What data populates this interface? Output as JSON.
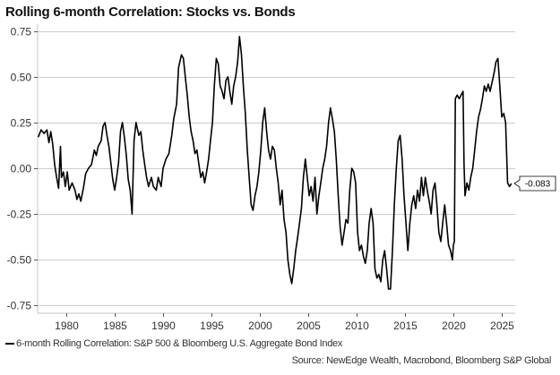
{
  "chart_data": {
    "type": "line",
    "title": "Rolling 6-month Correlation: Stocks vs. Bonds",
    "xlabel": "",
    "ylabel": "",
    "xlim": [
      1977.0,
      2026.6
    ],
    "ylim": [
      -0.78,
      0.78
    ],
    "yticks": [
      0.75,
      0.5,
      0.25,
      0.0,
      -0.25,
      -0.5,
      -0.75
    ],
    "ytick_labels": [
      "0.75",
      "0.50",
      "0.25",
      "0.00",
      "-0.25",
      "-0.50",
      "-0.75"
    ],
    "xticks": [
      1980,
      1985,
      1990,
      1995,
      2000,
      2005,
      2010,
      2015,
      2020,
      2025
    ],
    "xtick_labels": [
      "1980",
      "1985",
      "1990",
      "1995",
      "2000",
      "2005",
      "2010",
      "2015",
      "2020",
      "2025"
    ],
    "grid": "horizontal",
    "legend_position": "bottom-left",
    "series": [
      {
        "name": "6-month Rolling Correlation: S&P 500 & Bloomberg U.S. Aggregate Bond Index",
        "color": "#000000",
        "points": [
          [
            1977.1,
            0.17
          ],
          [
            1977.4,
            0.21
          ],
          [
            1977.7,
            0.19
          ],
          [
            1978.0,
            0.21
          ],
          [
            1978.2,
            0.14
          ],
          [
            1978.4,
            0.2
          ],
          [
            1978.6,
            0.13
          ],
          [
            1978.8,
            0.02
          ],
          [
            1979.0,
            -0.05
          ],
          [
            1979.2,
            -0.11
          ],
          [
            1979.4,
            0.12
          ],
          [
            1979.5,
            -0.05
          ],
          [
            1979.7,
            -0.02
          ],
          [
            1979.9,
            -0.1
          ],
          [
            1980.1,
            -0.02
          ],
          [
            1980.3,
            -0.12
          ],
          [
            1980.6,
            -0.08
          ],
          [
            1980.9,
            -0.12
          ],
          [
            1981.1,
            -0.17
          ],
          [
            1981.3,
            -0.14
          ],
          [
            1981.5,
            -0.18
          ],
          [
            1981.8,
            -0.1
          ],
          [
            1982.0,
            -0.03
          ],
          [
            1982.3,
            0.0
          ],
          [
            1982.6,
            0.02
          ],
          [
            1982.9,
            0.1
          ],
          [
            1983.1,
            0.07
          ],
          [
            1983.3,
            0.12
          ],
          [
            1983.6,
            0.15
          ],
          [
            1983.8,
            0.23
          ],
          [
            1984.0,
            0.25
          ],
          [
            1984.2,
            0.18
          ],
          [
            1984.4,
            0.12
          ],
          [
            1984.6,
            0.03
          ],
          [
            1984.8,
            -0.06
          ],
          [
            1985.0,
            -0.12
          ],
          [
            1985.2,
            -0.05
          ],
          [
            1985.4,
            0.03
          ],
          [
            1985.6,
            0.2
          ],
          [
            1985.8,
            0.25
          ],
          [
            1986.0,
            0.17
          ],
          [
            1986.2,
            0.07
          ],
          [
            1986.4,
            -0.06
          ],
          [
            1986.6,
            -0.12
          ],
          [
            1986.8,
            -0.25
          ],
          [
            1987.0,
            0.15
          ],
          [
            1987.2,
            0.25
          ],
          [
            1987.5,
            0.18
          ],
          [
            1987.7,
            0.2
          ],
          [
            1987.9,
            0.1
          ],
          [
            1988.1,
            0.02
          ],
          [
            1988.3,
            -0.05
          ],
          [
            1988.5,
            -0.1
          ],
          [
            1988.8,
            -0.05
          ],
          [
            1989.0,
            -0.1
          ],
          [
            1989.3,
            -0.12
          ],
          [
            1989.5,
            -0.05
          ],
          [
            1989.8,
            -0.1
          ],
          [
            1990.0,
            0.0
          ],
          [
            1990.3,
            0.05
          ],
          [
            1990.6,
            0.08
          ],
          [
            1990.9,
            0.18
          ],
          [
            1991.1,
            0.27
          ],
          [
            1991.4,
            0.35
          ],
          [
            1991.6,
            0.55
          ],
          [
            1991.9,
            0.62
          ],
          [
            1992.1,
            0.6
          ],
          [
            1992.3,
            0.5
          ],
          [
            1992.5,
            0.4
          ],
          [
            1992.7,
            0.28
          ],
          [
            1992.9,
            0.2
          ],
          [
            1993.1,
            0.15
          ],
          [
            1993.3,
            0.08
          ],
          [
            1993.5,
            0.1
          ],
          [
            1993.7,
            0.02
          ],
          [
            1993.9,
            -0.05
          ],
          [
            1994.1,
            -0.02
          ],
          [
            1994.3,
            -0.08
          ],
          [
            1994.5,
            -0.02
          ],
          [
            1994.7,
            0.05
          ],
          [
            1994.9,
            0.15
          ],
          [
            1995.1,
            0.25
          ],
          [
            1995.3,
            0.45
          ],
          [
            1995.5,
            0.6
          ],
          [
            1995.7,
            0.57
          ],
          [
            1995.9,
            0.45
          ],
          [
            1996.1,
            0.42
          ],
          [
            1996.3,
            0.38
          ],
          [
            1996.5,
            0.48
          ],
          [
            1996.7,
            0.5
          ],
          [
            1996.9,
            0.42
          ],
          [
            1997.1,
            0.35
          ],
          [
            1997.3,
            0.45
          ],
          [
            1997.5,
            0.5
          ],
          [
            1997.7,
            0.58
          ],
          [
            1997.9,
            0.72
          ],
          [
            1998.1,
            0.62
          ],
          [
            1998.3,
            0.45
          ],
          [
            1998.5,
            0.3
          ],
          [
            1998.7,
            0.1
          ],
          [
            1998.9,
            -0.05
          ],
          [
            1999.1,
            -0.2
          ],
          [
            1999.3,
            -0.23
          ],
          [
            1999.5,
            -0.15
          ],
          [
            1999.7,
            -0.1
          ],
          [
            1999.9,
            -0.02
          ],
          [
            2000.1,
            0.1
          ],
          [
            2000.3,
            0.25
          ],
          [
            2000.5,
            0.33
          ],
          [
            2000.7,
            0.2
          ],
          [
            2000.9,
            0.1
          ],
          [
            2001.1,
            0.05
          ],
          [
            2001.3,
            0.12
          ],
          [
            2001.5,
            0.1
          ],
          [
            2001.7,
            0.0
          ],
          [
            2001.9,
            -0.08
          ],
          [
            2002.1,
            -0.2
          ],
          [
            2002.3,
            -0.12
          ],
          [
            2002.5,
            -0.28
          ],
          [
            2002.7,
            -0.35
          ],
          [
            2002.9,
            -0.5
          ],
          [
            2003.1,
            -0.58
          ],
          [
            2003.3,
            -0.63
          ],
          [
            2003.5,
            -0.55
          ],
          [
            2003.7,
            -0.45
          ],
          [
            2003.9,
            -0.38
          ],
          [
            2004.1,
            -0.3
          ],
          [
            2004.3,
            -0.22
          ],
          [
            2004.5,
            -0.05
          ],
          [
            2004.7,
            0.05
          ],
          [
            2004.9,
            -0.05
          ],
          [
            2005.1,
            -0.15
          ],
          [
            2005.3,
            -0.1
          ],
          [
            2005.5,
            -0.18
          ],
          [
            2005.7,
            -0.05
          ],
          [
            2005.9,
            -0.25
          ],
          [
            2006.1,
            -0.15
          ],
          [
            2006.3,
            -0.08
          ],
          [
            2006.5,
            0.0
          ],
          [
            2006.7,
            0.05
          ],
          [
            2006.9,
            0.12
          ],
          [
            2007.1,
            0.25
          ],
          [
            2007.3,
            0.33
          ],
          [
            2007.5,
            0.27
          ],
          [
            2007.7,
            0.2
          ],
          [
            2007.9,
            0.05
          ],
          [
            2008.1,
            -0.15
          ],
          [
            2008.3,
            -0.32
          ],
          [
            2008.5,
            -0.42
          ],
          [
            2008.7,
            -0.35
          ],
          [
            2008.9,
            -0.28
          ],
          [
            2009.1,
            -0.3
          ],
          [
            2009.3,
            -0.12
          ],
          [
            2009.5,
            0.0
          ],
          [
            2009.7,
            -0.02
          ],
          [
            2009.9,
            -0.08
          ],
          [
            2010.1,
            -0.35
          ],
          [
            2010.3,
            -0.45
          ],
          [
            2010.5,
            -0.42
          ],
          [
            2010.7,
            -0.48
          ],
          [
            2010.9,
            -0.52
          ],
          [
            2011.1,
            -0.45
          ],
          [
            2011.3,
            -0.3
          ],
          [
            2011.5,
            -0.22
          ],
          [
            2011.7,
            -0.3
          ],
          [
            2011.9,
            -0.55
          ],
          [
            2012.1,
            -0.6
          ],
          [
            2012.3,
            -0.58
          ],
          [
            2012.5,
            -0.62
          ],
          [
            2012.7,
            -0.5
          ],
          [
            2012.9,
            -0.45
          ],
          [
            2013.1,
            -0.55
          ],
          [
            2013.3,
            -0.66
          ],
          [
            2013.5,
            -0.66
          ],
          [
            2013.7,
            -0.45
          ],
          [
            2013.9,
            -0.2
          ],
          [
            2014.1,
            0.0
          ],
          [
            2014.3,
            0.15
          ],
          [
            2014.5,
            0.18
          ],
          [
            2014.7,
            0.05
          ],
          [
            2014.9,
            -0.15
          ],
          [
            2015.1,
            -0.3
          ],
          [
            2015.3,
            -0.45
          ],
          [
            2015.5,
            -0.3
          ],
          [
            2015.7,
            -0.2
          ],
          [
            2015.9,
            -0.15
          ],
          [
            2016.1,
            -0.22
          ],
          [
            2016.3,
            -0.12
          ],
          [
            2016.5,
            -0.18
          ],
          [
            2016.7,
            -0.05
          ],
          [
            2016.9,
            -0.15
          ],
          [
            2017.1,
            -0.05
          ],
          [
            2017.3,
            -0.12
          ],
          [
            2017.5,
            -0.18
          ],
          [
            2017.7,
            -0.25
          ],
          [
            2017.9,
            -0.12
          ],
          [
            2018.1,
            -0.08
          ],
          [
            2018.3,
            -0.2
          ],
          [
            2018.5,
            -0.35
          ],
          [
            2018.7,
            -0.4
          ],
          [
            2018.9,
            -0.3
          ],
          [
            2019.1,
            -0.2
          ],
          [
            2019.3,
            -0.3
          ],
          [
            2019.5,
            -0.42
          ],
          [
            2019.7,
            -0.45
          ],
          [
            2019.9,
            -0.5
          ],
          [
            2020.0,
            -0.42
          ],
          [
            2020.1,
            -0.4
          ],
          [
            2020.2,
            0.38
          ],
          [
            2020.4,
            0.4
          ],
          [
            2020.6,
            0.38
          ],
          [
            2020.8,
            0.4
          ],
          [
            2021.0,
            0.42
          ],
          [
            2021.1,
            0.02
          ],
          [
            2021.2,
            -0.15
          ],
          [
            2021.4,
            -0.08
          ],
          [
            2021.6,
            -0.12
          ],
          [
            2021.8,
            -0.05
          ],
          [
            2022.0,
            0.0
          ],
          [
            2022.2,
            0.1
          ],
          [
            2022.4,
            0.2
          ],
          [
            2022.6,
            0.28
          ],
          [
            2022.8,
            0.32
          ],
          [
            2023.0,
            0.38
          ],
          [
            2023.2,
            0.45
          ],
          [
            2023.4,
            0.42
          ],
          [
            2023.6,
            0.46
          ],
          [
            2023.8,
            0.42
          ],
          [
            2024.0,
            0.47
          ],
          [
            2024.2,
            0.52
          ],
          [
            2024.4,
            0.58
          ],
          [
            2024.6,
            0.6
          ],
          [
            2024.8,
            0.45
          ],
          [
            2025.0,
            0.28
          ],
          [
            2025.2,
            0.3
          ],
          [
            2025.4,
            0.25
          ],
          [
            2025.6,
            -0.08
          ],
          [
            2025.8,
            -0.1
          ],
          [
            2026.0,
            -0.083
          ]
        ]
      }
    ],
    "annotations": [
      {
        "type": "end-value-callout",
        "text": "-0.083",
        "value": -0.083
      }
    ]
  },
  "legend": {
    "label": "6-month Rolling Correlation: S&P 500 & Bloomberg U.S. Aggregate Bond Index"
  },
  "source": "Source: NewEdge Wealth, Macrobond, Bloomberg S&P Global"
}
